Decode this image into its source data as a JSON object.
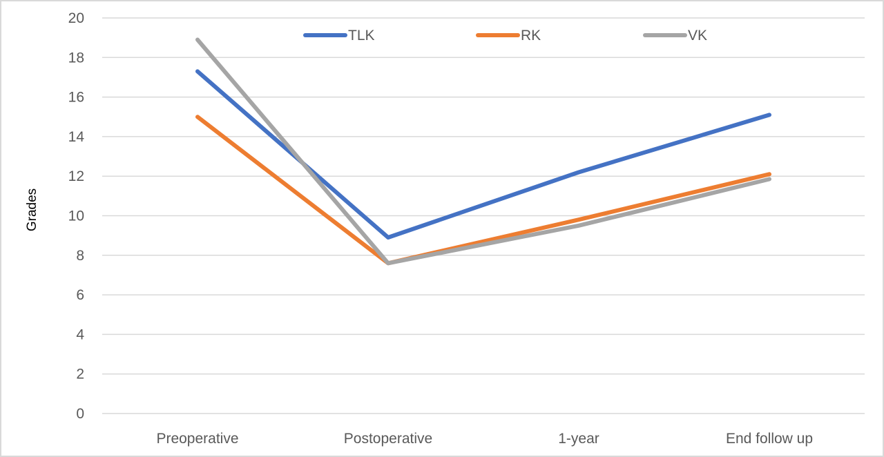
{
  "chart_data": {
    "type": "line",
    "title": "",
    "xlabel": "",
    "ylabel": "Grades",
    "ylim": [
      0,
      20
    ],
    "yticks": [
      "0",
      "2",
      "4",
      "6",
      "8",
      "10",
      "12",
      "14",
      "16",
      "18",
      "20"
    ],
    "categories": [
      "Preoperative",
      "Postoperative",
      "1-year",
      "End follow up"
    ],
    "grid": true,
    "legend_position": "top",
    "series": [
      {
        "name": "TLK",
        "color": "#4472c4",
        "values": [
          17.3,
          8.9,
          12.2,
          15.1
        ]
      },
      {
        "name": "RK",
        "color": "#ed7d31",
        "values": [
          15.0,
          7.6,
          9.8,
          12.1
        ]
      },
      {
        "name": "VK",
        "color": "#a5a5a5",
        "values": [
          18.9,
          7.6,
          9.5,
          11.85
        ]
      }
    ]
  }
}
